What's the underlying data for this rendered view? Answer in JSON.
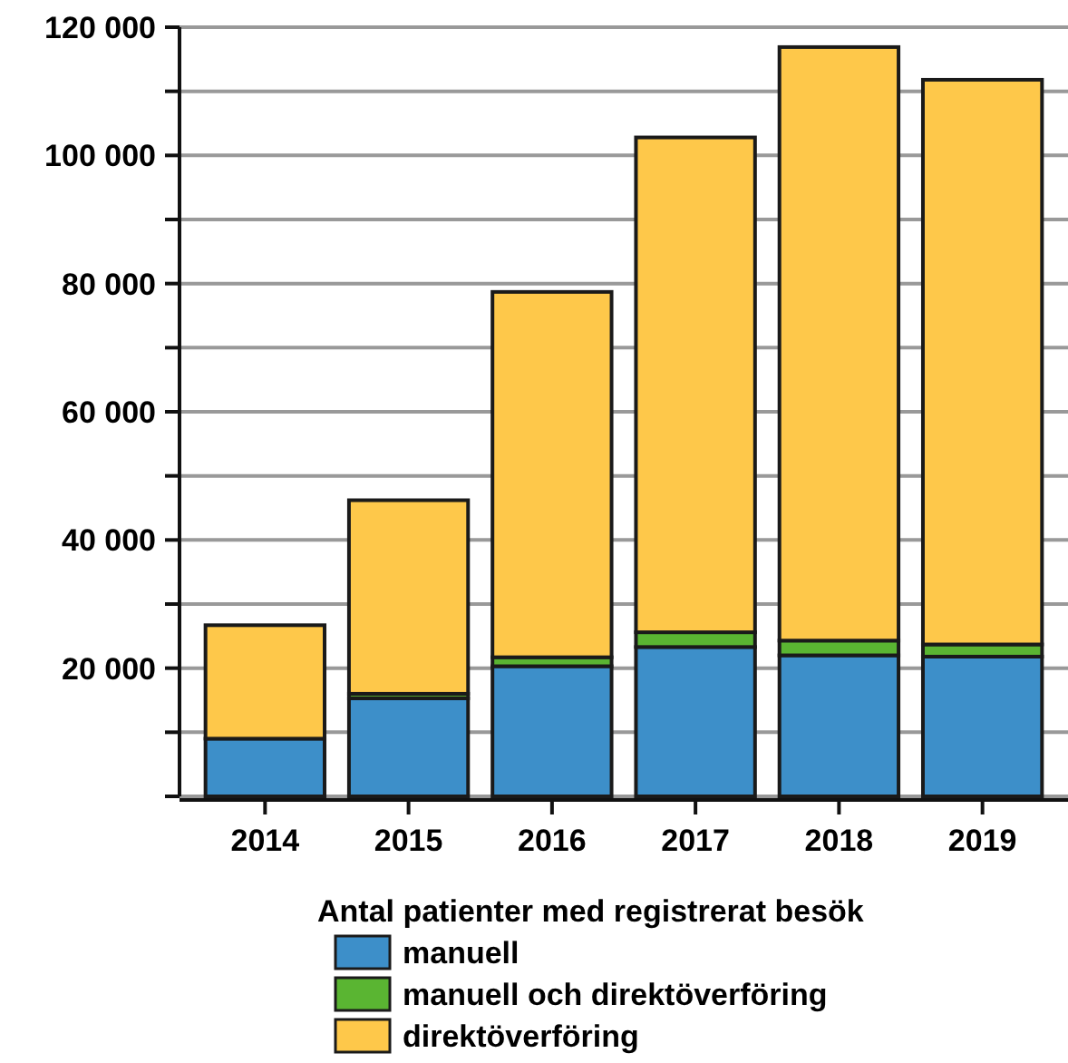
{
  "chart_data": {
    "type": "bar",
    "stacked": true,
    "legend_title": "Antal patienter med registrerat besök",
    "legend": "bottom",
    "grid": "y",
    "categories": [
      "2014",
      "2015",
      "2016",
      "2017",
      "2018",
      "2019"
    ],
    "ylim": [
      0,
      120000
    ],
    "yticks": [
      {
        "value": 0,
        "label": null
      },
      {
        "value": 10000,
        "label": null
      },
      {
        "value": 20000,
        "label": "20 000"
      },
      {
        "value": 30000,
        "label": null
      },
      {
        "value": 40000,
        "label": "40 000"
      },
      {
        "value": 50000,
        "label": null
      },
      {
        "value": 60000,
        "label": "60 000"
      },
      {
        "value": 70000,
        "label": null
      },
      {
        "value": 80000,
        "label": "80 000"
      },
      {
        "value": 90000,
        "label": null
      },
      {
        "value": 100000,
        "label": "100 000"
      },
      {
        "value": 110000,
        "label": null
      },
      {
        "value": 120000,
        "label": "120 000"
      }
    ],
    "series": [
      {
        "name": "manuell",
        "color": "#3d8fc9",
        "values": [
          9000,
          15300,
          20300,
          23300,
          22000,
          21800
        ]
      },
      {
        "name": "manuell och direktöverföring",
        "color": "#5ab532",
        "values": [
          null,
          700,
          1400,
          2300,
          2300,
          1900
        ]
      },
      {
        "name": "direktöverföring",
        "color": "#fec84a",
        "values": [
          17700,
          30200,
          57000,
          77200,
          92600,
          88100
        ]
      }
    ]
  }
}
